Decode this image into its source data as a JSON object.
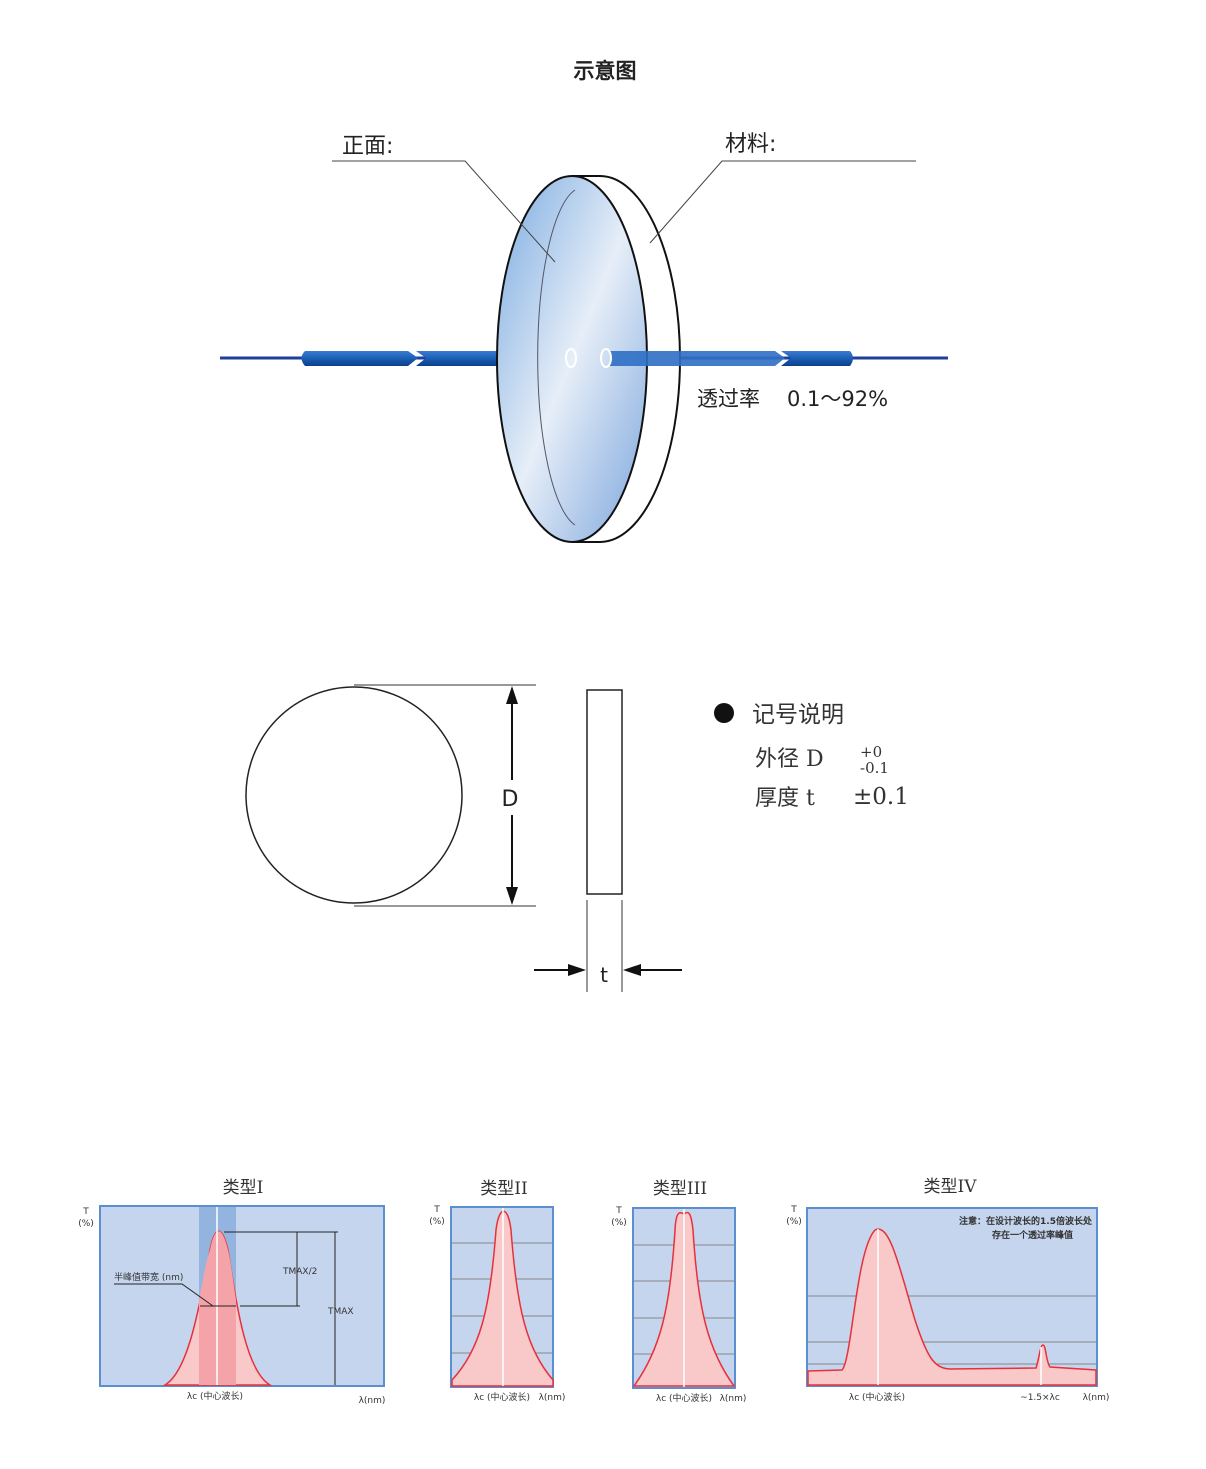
{
  "title": "示意图",
  "lens_diagram": {
    "front_label": "正面:",
    "material_label": "材料:",
    "transmittance_label": "透过率",
    "transmittance_value": "0.1～92%"
  },
  "dimension_diagram": {
    "d_label": "D",
    "t_label": "t",
    "legend_title": "记号说明",
    "outer_diameter_label": "外径 D",
    "outer_diameter_tol_plus": "+0",
    "outer_diameter_tol_minus": "-0.1",
    "thickness_label": "厚度 t",
    "thickness_tol": "±0.1"
  },
  "charts": [
    {
      "title": "类型I",
      "y_label_top": "T",
      "y_label_unit": "(%)",
      "x_center_label": "λc (中心波长)",
      "x_unit": "λ(nm)",
      "fwhm_label": "半峰值带宽 (nm)",
      "tmax_half_label": "TMAX/2",
      "tmax_label": "TMAX"
    },
    {
      "title": "类型II",
      "y_label_top": "T",
      "y_label_unit": "(%)",
      "x_center_label": "λc (中心波长)",
      "x_unit": "λ(nm)"
    },
    {
      "title": "类型III",
      "y_label_top": "T",
      "y_label_unit": "(%)",
      "x_center_label": "λc (中心波长)",
      "x_unit": "λ(nm)"
    },
    {
      "title": "类型IV",
      "y_label_top": "T",
      "y_label_unit": "(%)",
      "x_center_label": "λc (中心波长)",
      "x_secondary_label": "~1.5×λc",
      "x_unit": "λ(nm)",
      "note_line1": "注意：在设计波长的1.5倍波长处",
      "note_line2": "存在一个透过率峰值"
    }
  ],
  "colors": {
    "beam": "#1a5fb4",
    "chart_bg": "#c5d5ee",
    "curve": "#e8303a",
    "fill": "#f9c9c9"
  }
}
